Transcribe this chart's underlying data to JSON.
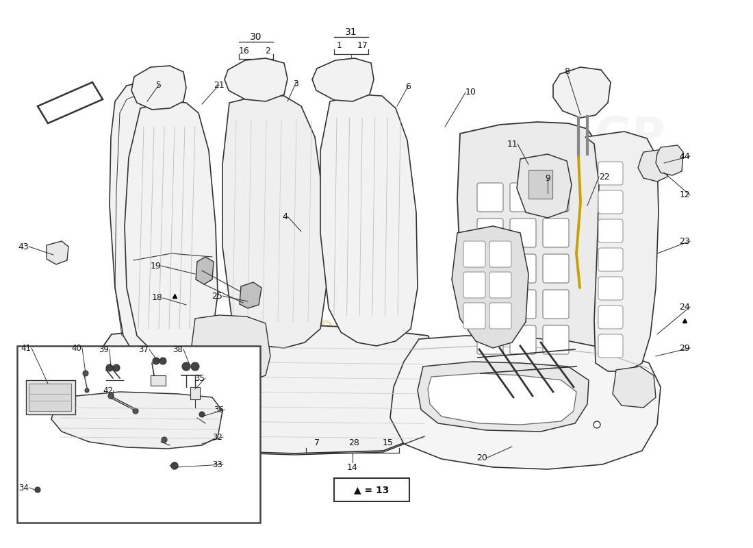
{
  "bg": "#ffffff",
  "wm_text": "a passion for parts...",
  "wm_color": "#c8a020",
  "wm_alpha": 0.3,
  "legend": "▲ = 13",
  "line_color": "#333333",
  "fill_light": "#f2f2f2",
  "fill_mid": "#e8e8e8",
  "fill_dark": "#d8d8d8",
  "anno_color": "#222222"
}
